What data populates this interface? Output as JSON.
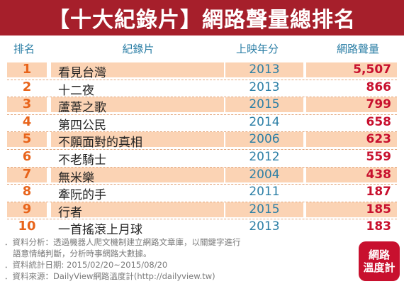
{
  "title": "【十大紀錄片】網路聲量總排名",
  "columns": {
    "rank": "排名",
    "title": "紀錄片",
    "year": "上映年分",
    "volume": "網路聲量"
  },
  "rows": [
    {
      "rank": "1",
      "title": "看見台灣",
      "year": "2013",
      "volume": "5,507"
    },
    {
      "rank": "2",
      "title": "十二夜",
      "year": "2013",
      "volume": "866"
    },
    {
      "rank": "3",
      "title": "蘆葦之歌",
      "year": "2015",
      "volume": "799"
    },
    {
      "rank": "4",
      "title": "第四公民",
      "year": "2014",
      "volume": "658"
    },
    {
      "rank": "5",
      "title": "不願面對的真相",
      "year": "2006",
      "volume": "623"
    },
    {
      "rank": "6",
      "title": "不老騎士",
      "year": "2012",
      "volume": "559"
    },
    {
      "rank": "7",
      "title": "無米樂",
      "year": "2004",
      "volume": "438"
    },
    {
      "rank": "8",
      "title": "牽阮的手",
      "year": "2011",
      "volume": "187"
    },
    {
      "rank": "9",
      "title": "行者",
      "year": "2015",
      "volume": "185"
    },
    {
      "rank": "10",
      "title": "一首搖滾上月球",
      "year": "2013",
      "volume": "183"
    }
  ],
  "footer": {
    "line1": "．資料分析：透過機器人爬文機制建立網路文章庫，以關鍵字進行",
    "line2": "語意情緒判斷，分析時事網路大數據。",
    "line3": "．資料統計日期: 2015/02/20~2015/08/20",
    "line4": "．資料來源：DailyView網路溫度計(http://dailyview.tw)"
  },
  "logo": {
    "line1": "網路",
    "line2": "溫度計"
  },
  "chart_data": {
    "type": "table",
    "title": "【十大紀錄片】網路聲量總排名",
    "columns": [
      "排名",
      "紀錄片",
      "上映年分",
      "網路聲量"
    ],
    "rows": [
      [
        "1",
        "看見台灣",
        "2013",
        "5,507"
      ],
      [
        "2",
        "十二夜",
        "2013",
        "866"
      ],
      [
        "3",
        "蘆葦之歌",
        "2015",
        "799"
      ],
      [
        "4",
        "第四公民",
        "2014",
        "658"
      ],
      [
        "5",
        "不願面對的真相",
        "2006",
        "623"
      ],
      [
        "6",
        "不老騎士",
        "2012",
        "559"
      ],
      [
        "7",
        "無米樂",
        "2004",
        "438"
      ],
      [
        "8",
        "牽阮的手",
        "2011",
        "187"
      ],
      [
        "9",
        "行者",
        "2015",
        "185"
      ],
      [
        "10",
        "一首搖滾上月球",
        "2013",
        "183"
      ]
    ]
  },
  "colors": {
    "header_bg": "#a61f2b",
    "odd_row_bg": "#fbd3b4",
    "rank_color": "#e8641b",
    "year_color": "#2c7fa6",
    "volume_color": "#c8102e"
  }
}
